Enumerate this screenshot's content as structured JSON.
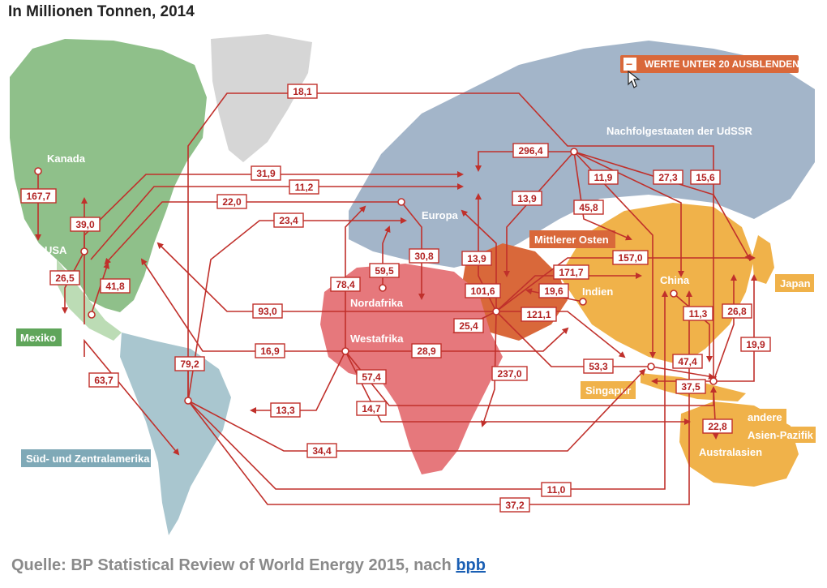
{
  "title": "In Millionen Tonnen, 2014",
  "source": {
    "prefix": "Quelle: BP Statistical Review of World Energy 2015, nach ",
    "link_label": "bpb"
  },
  "toggle": {
    "icon_label": "−",
    "label": "WERTE UNTER 20 AUSBLENDEN"
  },
  "regions": {
    "kanada": "Kanada",
    "usa": "USA",
    "mexiko": "Mexiko",
    "sued_zentralamerika": "Süd- und Zentralamerika",
    "europa": "Europa",
    "udssr": "Nachfolgestaaten der UdSSR",
    "mittlerer_osten": "Mittlerer Osten",
    "nordafrika": "Nordafrika",
    "westafrika": "Westafrika",
    "indien": "Indien",
    "china": "China",
    "japan": "Japan",
    "singapur": "Singapur",
    "andere": "andere",
    "asien_pazifik": "Asien-Pazifik",
    "australasien": "Australasien"
  },
  "flows": [
    {
      "id": "f1",
      "value": "18,1"
    },
    {
      "id": "f2",
      "value": "31,9"
    },
    {
      "id": "f3",
      "value": "11,2"
    },
    {
      "id": "f4",
      "value": "22,0"
    },
    {
      "id": "f5",
      "value": "23,4"
    },
    {
      "id": "f6",
      "value": "167,7"
    },
    {
      "id": "f7",
      "value": "39,0"
    },
    {
      "id": "f8",
      "value": "26,5"
    },
    {
      "id": "f9",
      "value": "41,8"
    },
    {
      "id": "f10",
      "value": "63,7"
    },
    {
      "id": "f11",
      "value": "79,2"
    },
    {
      "id": "f12",
      "value": "93,0"
    },
    {
      "id": "f13",
      "value": "16,9"
    },
    {
      "id": "f14",
      "value": "28,9"
    },
    {
      "id": "f15",
      "value": "57,4"
    },
    {
      "id": "f16",
      "value": "14,7"
    },
    {
      "id": "f17",
      "value": "13,3"
    },
    {
      "id": "f18",
      "value": "34,4"
    },
    {
      "id": "f19",
      "value": "11,0"
    },
    {
      "id": "f20",
      "value": "37,2"
    },
    {
      "id": "f21",
      "value": "59,5"
    },
    {
      "id": "f22",
      "value": "78,4"
    },
    {
      "id": "f23",
      "value": "30,8"
    },
    {
      "id": "f24",
      "value": "296,4"
    },
    {
      "id": "f25",
      "value": "13,9"
    },
    {
      "id": "f26",
      "value": "13,9"
    },
    {
      "id": "f27",
      "value": "11,9"
    },
    {
      "id": "f28",
      "value": "45,8"
    },
    {
      "id": "f29",
      "value": "27,3"
    },
    {
      "id": "f30",
      "value": "15,6"
    },
    {
      "id": "f31",
      "value": "101,6"
    },
    {
      "id": "f32",
      "value": "171,7"
    },
    {
      "id": "f33",
      "value": "157,0"
    },
    {
      "id": "f34",
      "value": "19,6"
    },
    {
      "id": "f35",
      "value": "121,1"
    },
    {
      "id": "f36",
      "value": "25,4"
    },
    {
      "id": "f37",
      "value": "237,0"
    },
    {
      "id": "f38",
      "value": "53,3"
    },
    {
      "id": "f39",
      "value": "47,4"
    },
    {
      "id": "f40",
      "value": "37,5"
    },
    {
      "id": "f41",
      "value": "11,3"
    },
    {
      "id": "f42",
      "value": "26,8"
    },
    {
      "id": "f43",
      "value": "19,9"
    },
    {
      "id": "f44",
      "value": "22,8"
    }
  ],
  "colors": {
    "north_america": "#8fc08a",
    "south_america": "#a9c6cf",
    "greenland": "#d6d6d6",
    "eurasia": "#a3b5c9",
    "middle_east": "#d9683a",
    "africa": "#e6787c",
    "asia_pacific": "#f0b24a",
    "route": "#c0302b"
  }
}
